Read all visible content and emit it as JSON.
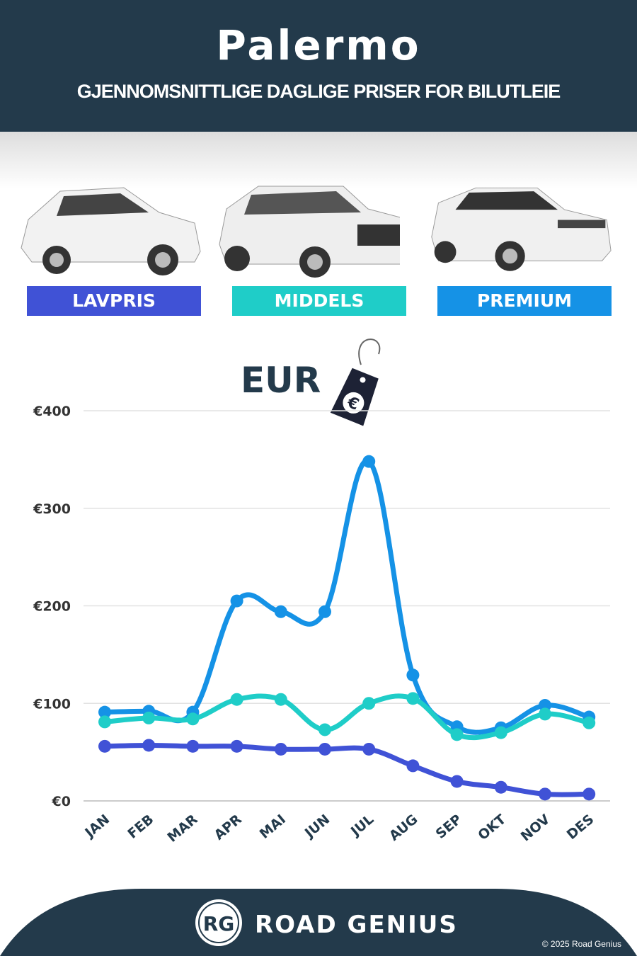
{
  "header": {
    "title": "Palermo",
    "subtitle": "GJENNOMSNITTLIGE DAGLIGE PRISER FOR BILUTLEIE"
  },
  "categories": [
    {
      "label": "LAVPRIS",
      "color": "#4052d6"
    },
    {
      "label": "MIDDELS",
      "color": "#1fcdc8"
    },
    {
      "label": "PREMIUM",
      "color": "#1592e6"
    }
  ],
  "currency": {
    "label": "EUR",
    "icon": "euro-price-tag-icon",
    "symbol": "€"
  },
  "chart_data": {
    "type": "line",
    "categories": [
      "JAN",
      "FEB",
      "MAR",
      "APR",
      "MAI",
      "JUN",
      "JUL",
      "AUG",
      "SEP",
      "OKT",
      "NOV",
      "DES"
    ],
    "ylim": [
      0,
      400
    ],
    "yticks": [
      0,
      100,
      200,
      300,
      400
    ],
    "ytick_labels": [
      "€0",
      "€100",
      "€200",
      "€300",
      "€400"
    ],
    "grid": true,
    "series": [
      {
        "name": "PREMIUM",
        "color": "#1592e6",
        "values": [
          91,
          92,
          91,
          205,
          194,
          194,
          348,
          129,
          76,
          75,
          98,
          86
        ]
      },
      {
        "name": "MIDDELS",
        "color": "#1fcdc8",
        "values": [
          81,
          85,
          84,
          104,
          104,
          73,
          100,
          105,
          68,
          70,
          89,
          80
        ]
      },
      {
        "name": "LAVPRIS",
        "color": "#4052d6",
        "values": [
          56,
          57,
          56,
          56,
          53,
          53,
          53,
          36,
          20,
          14,
          7,
          7
        ]
      }
    ]
  },
  "footer": {
    "logo_text": "RG",
    "brand": "ROAD GENIUS",
    "copyright": "© 2025 Road Genius"
  }
}
